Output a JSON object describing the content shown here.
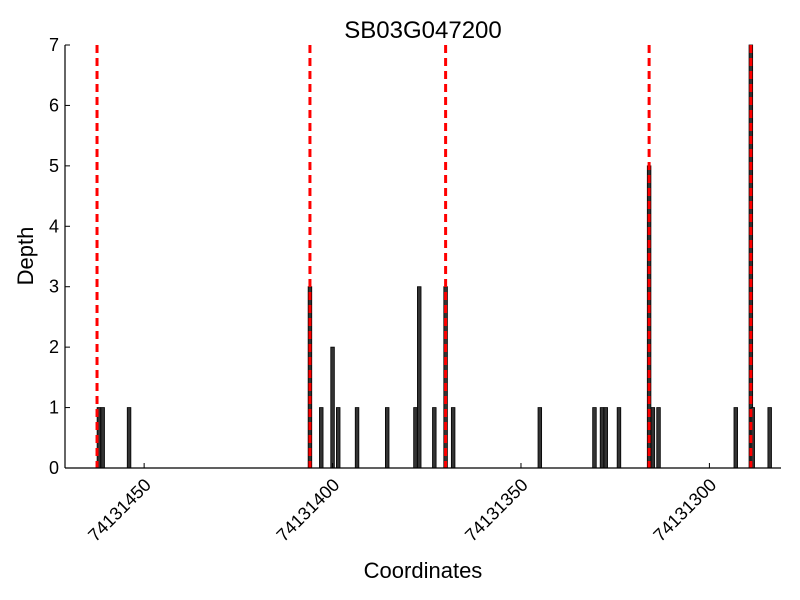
{
  "chart_data": {
    "type": "bar",
    "title": "SB03G047200",
    "xlabel": "Coordinates",
    "ylabel": "Depth",
    "x_reversed": true,
    "xlim": [
      74131471,
      74131281
    ],
    "ylim": [
      0,
      7
    ],
    "y_ticks": [
      0,
      1,
      2,
      3,
      4,
      5,
      6,
      7
    ],
    "y_tick_labels": [
      "0",
      "1",
      "2",
      "3",
      "4",
      "5",
      "6",
      "7"
    ],
    "x_ticks": [
      74131450,
      74131400,
      74131350,
      74131300
    ],
    "x_tick_labels": [
      "74131450",
      "74131400",
      "74131350",
      "74131300"
    ],
    "bar_color": "#333333",
    "bar_edge_color": "#000000",
    "marker_line_color": "#ff0000",
    "bars": [
      {
        "x": 74131462.0,
        "value": 1
      },
      {
        "x": 74131461.0,
        "value": 1
      },
      {
        "x": 74131454.0,
        "value": 1
      },
      {
        "x": 74131406.0,
        "value": 3
      },
      {
        "x": 74131403.0,
        "value": 1
      },
      {
        "x": 74131400.0,
        "value": 2
      },
      {
        "x": 74131398.5,
        "value": 1
      },
      {
        "x": 74131393.5,
        "value": 1
      },
      {
        "x": 74131385.5,
        "value": 1
      },
      {
        "x": 74131378.0,
        "value": 1
      },
      {
        "x": 74131377.0,
        "value": 3
      },
      {
        "x": 74131373.0,
        "value": 1
      },
      {
        "x": 74131370.0,
        "value": 3
      },
      {
        "x": 74131368.0,
        "value": 1
      },
      {
        "x": 74131345.0,
        "value": 1
      },
      {
        "x": 74131330.5,
        "value": 1
      },
      {
        "x": 74131328.5,
        "value": 1
      },
      {
        "x": 74131327.5,
        "value": 1
      },
      {
        "x": 74131324.0,
        "value": 1
      },
      {
        "x": 74131316.0,
        "value": 5
      },
      {
        "x": 74131315.0,
        "value": 1
      },
      {
        "x": 74131313.5,
        "value": 1
      },
      {
        "x": 74131293.0,
        "value": 1
      },
      {
        "x": 74131289.0,
        "value": 7
      },
      {
        "x": 74131288.5,
        "value": 1
      },
      {
        "x": 74131284.0,
        "value": 1
      }
    ],
    "marker_lines": [
      74131462.5,
      74131406.0,
      74131370.0,
      74131316.0,
      74131289.0
    ]
  }
}
